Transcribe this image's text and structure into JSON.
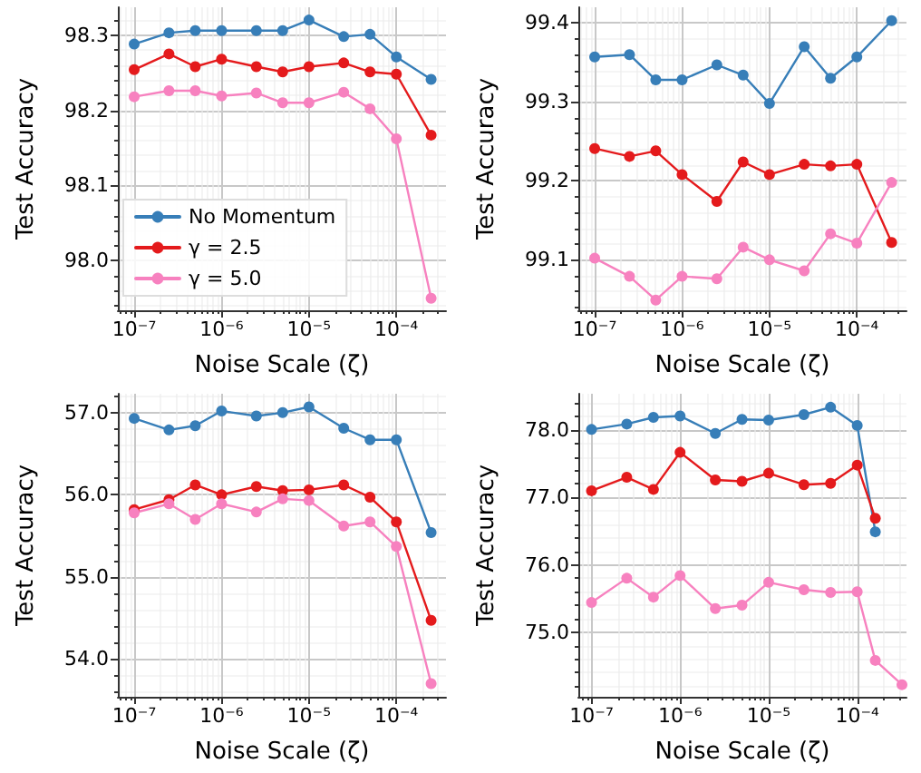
{
  "chart_data": [
    {
      "type": "line",
      "xlabel": "Noise Scale (ζ)",
      "ylabel": "Test Accuracy",
      "x": [
        1e-07,
        2.5e-07,
        5e-07,
        1e-06,
        2.5e-06,
        5e-06,
        1e-05,
        2.5e-05,
        5e-05,
        0.0001,
        0.00025
      ],
      "series": [
        {
          "name": "No Momentum",
          "color": "#377eb8",
          "values": [
            98.288,
            98.303,
            98.306,
            98.306,
            98.306,
            98.306,
            98.32,
            98.298,
            98.301,
            98.271,
            98.241
          ]
        },
        {
          "name": "γ = 2.5",
          "color": "#e41a1c",
          "values": [
            98.254,
            98.275,
            98.258,
            98.268,
            98.258,
            98.251,
            98.258,
            98.263,
            98.251,
            98.248,
            98.167
          ]
        },
        {
          "name": "γ = 5.0",
          "color": "#f781bf",
          "values": [
            98.218,
            98.226,
            98.226,
            98.219,
            98.223,
            98.21,
            98.21,
            98.224,
            98.202,
            98.162,
            97.95
          ]
        }
      ],
      "log": "x",
      "xlim": [
        6.5e-08,
        0.00037
      ],
      "xticks": [
        {
          "value": 1e-07,
          "label": "10⁻⁷"
        },
        {
          "value": 1e-06,
          "label": "10⁻⁶"
        },
        {
          "value": 1e-05,
          "label": "10⁻⁵"
        },
        {
          "value": 0.0001,
          "label": "10⁻⁴"
        }
      ],
      "ylim": [
        97.934,
        98.337
      ],
      "yticks": [
        {
          "value": 98,
          "label": "98.0"
        },
        {
          "value": 98.1,
          "label": "98.1"
        },
        {
          "value": 98.2,
          "label": "98.2"
        },
        {
          "value": 98.3,
          "label": "98.3"
        }
      ],
      "grid": true,
      "legend": "bottom left",
      "marker": "circle"
    },
    {
      "type": "line",
      "xlabel": "Noise Scale (ζ)",
      "ylabel": "Test Accuracy",
      "x": [
        1e-07,
        2.5e-07,
        5e-07,
        1e-06,
        2.5e-06,
        5e-06,
        1e-05,
        2.5e-05,
        5e-05,
        0.0001,
        0.00025
      ],
      "series": [
        {
          "color": "#377eb8",
          "values": [
            99.357,
            99.36,
            99.328,
            99.328,
            99.347,
            99.334,
            99.298,
            99.37,
            99.33,
            99.357,
            99.403
          ]
        },
        {
          "color": "#e41a1c",
          "values": [
            99.241,
            99.231,
            99.238,
            99.208,
            99.174,
            99.224,
            99.208,
            99.221,
            99.219,
            99.221,
            99.122
          ]
        },
        {
          "color": "#f781bf",
          "values": [
            99.102,
            99.079,
            99.049,
            99.079,
            99.076,
            99.116,
            99.1,
            99.086,
            99.133,
            99.121,
            99.198
          ]
        }
      ],
      "log": "x",
      "xlim": [
        6.5e-08,
        0.00037
      ],
      "xticks": [
        {
          "value": 1e-07,
          "label": "10⁻⁷"
        },
        {
          "value": 1e-06,
          "label": "10⁻⁶"
        },
        {
          "value": 1e-05,
          "label": "10⁻⁵"
        },
        {
          "value": 0.0001,
          "label": "10⁻⁴"
        }
      ],
      "ylim": [
        99.036,
        99.42
      ],
      "yticks": [
        {
          "value": 99.1,
          "label": "99.1"
        },
        {
          "value": 99.2,
          "label": "99.2"
        },
        {
          "value": 99.3,
          "label": "99.3"
        },
        {
          "value": 99.4,
          "label": "99.4"
        }
      ],
      "grid": true,
      "marker": "circle"
    },
    {
      "type": "line",
      "xlabel": "Noise Scale (ζ)",
      "ylabel": "Test Accuracy",
      "x": [
        1e-07,
        2.5e-07,
        5e-07,
        1e-06,
        2.5e-06,
        5e-06,
        1e-05,
        2.5e-05,
        5e-05,
        0.0001,
        0.00025
      ],
      "series": [
        {
          "color": "#377eb8",
          "values": [
            56.93,
            56.79,
            56.84,
            57.02,
            56.96,
            57.0,
            57.07,
            56.81,
            56.67,
            56.67,
            55.54
          ]
        },
        {
          "color": "#e41a1c",
          "values": [
            55.82,
            55.94,
            56.12,
            56.0,
            56.1,
            56.05,
            56.06,
            56.12,
            55.97,
            55.67,
            54.47
          ]
        },
        {
          "color": "#f781bf",
          "values": [
            55.78,
            55.89,
            55.7,
            55.89,
            55.79,
            55.95,
            55.93,
            55.62,
            55.67,
            55.37,
            53.7
          ]
        }
      ],
      "log": "x",
      "xlim": [
        6.5e-08,
        0.00037
      ],
      "xticks": [
        {
          "value": 1e-07,
          "label": "10⁻⁷"
        },
        {
          "value": 1e-06,
          "label": "10⁻⁶"
        },
        {
          "value": 1e-05,
          "label": "10⁻⁵"
        },
        {
          "value": 0.0001,
          "label": "10⁻⁴"
        }
      ],
      "ylim": [
        53.54,
        57.23
      ],
      "yticks": [
        {
          "value": 54,
          "label": "54.0"
        },
        {
          "value": 55,
          "label": "55.0"
        },
        {
          "value": 56,
          "label": "56.0"
        },
        {
          "value": 57,
          "label": "57.0"
        }
      ],
      "grid": true,
      "marker": "circle"
    },
    {
      "type": "line",
      "xlabel": "Noise Scale (ζ)",
      "ylabel": "Test Accuracy",
      "series": [
        {
          "color": "#377eb8",
          "x": [
            1e-07,
            2.5e-07,
            5e-07,
            1e-06,
            2.5e-06,
            5e-06,
            1e-05,
            2.5e-05,
            5e-05,
            0.0001,
            0.00016
          ],
          "values": [
            78.01,
            78.09,
            78.19,
            78.21,
            77.95,
            78.16,
            78.15,
            78.23,
            78.34,
            78.07,
            76.49
          ]
        },
        {
          "color": "#e41a1c",
          "x": [
            1e-07,
            2.5e-07,
            5e-07,
            1e-06,
            2.5e-06,
            5e-06,
            1e-05,
            2.5e-05,
            5e-05,
            0.0001,
            0.00016
          ],
          "values": [
            77.1,
            77.3,
            77.12,
            77.67,
            77.26,
            77.24,
            77.36,
            77.19,
            77.21,
            77.48,
            76.69
          ]
        },
        {
          "color": "#f781bf",
          "x": [
            1e-07,
            2.5e-07,
            5e-07,
            1e-06,
            2.5e-06,
            5e-06,
            1e-05,
            2.5e-05,
            5e-05,
            0.0001,
            0.00016,
            0.00032
          ],
          "values": [
            75.44,
            75.8,
            75.52,
            75.84,
            75.35,
            75.4,
            75.74,
            75.63,
            75.59,
            75.6,
            74.58,
            74.22
          ]
        }
      ],
      "log": "x",
      "xlim": [
        7.1e-08,
        0.00036
      ],
      "xticks": [
        {
          "value": 1e-07,
          "label": "10⁻⁷"
        },
        {
          "value": 1e-06,
          "label": "10⁻⁶"
        },
        {
          "value": 1e-05,
          "label": "10⁻⁵"
        },
        {
          "value": 0.0001,
          "label": "10⁻⁴"
        }
      ],
      "ylim": [
        74.04,
        78.54
      ],
      "yticks": [
        {
          "value": 75,
          "label": "75.0"
        },
        {
          "value": 76,
          "label": "76.0"
        },
        {
          "value": 77,
          "label": "77.0"
        },
        {
          "value": 78,
          "label": "78.0"
        }
      ],
      "grid": true,
      "marker": "circle"
    }
  ]
}
